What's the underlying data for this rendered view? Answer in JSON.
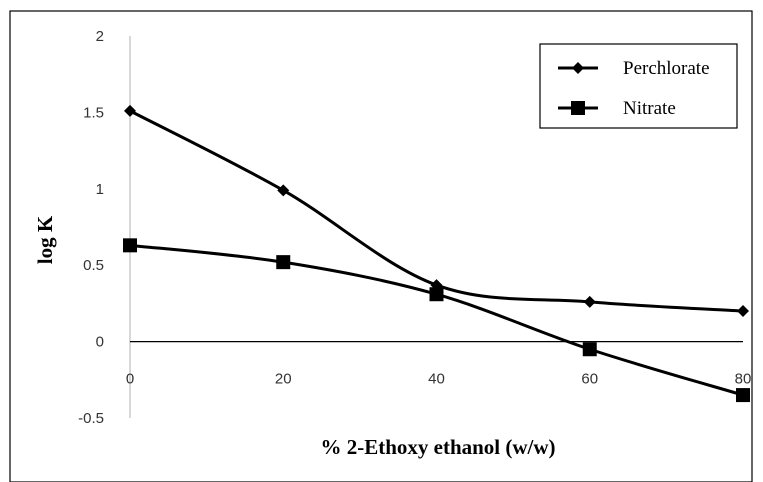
{
  "chart_data": {
    "type": "line",
    "title": "",
    "xlabel": "% 2-Ethoxy ethanol (w/w)",
    "ylabel": "log K",
    "x": [
      0,
      20,
      40,
      60,
      80
    ],
    "x_ticks": [
      "0",
      "20",
      "40",
      "60",
      "80"
    ],
    "y_ticks": [
      "2",
      "1.5",
      "1",
      "0.5",
      "0",
      "-0.5"
    ],
    "xlim": [
      0,
      80
    ],
    "ylim": [
      -0.5,
      2
    ],
    "grid": false,
    "legend_position": "top-right",
    "series": [
      {
        "name": "Perchlorate",
        "marker": "diamond",
        "color": "#000000",
        "values": [
          1.51,
          0.99,
          0.37,
          0.26,
          0.2
        ]
      },
      {
        "name": "Nitrate",
        "marker": "square",
        "color": "#000000",
        "values": [
          0.63,
          0.52,
          0.31,
          -0.05,
          -0.35
        ]
      }
    ]
  }
}
